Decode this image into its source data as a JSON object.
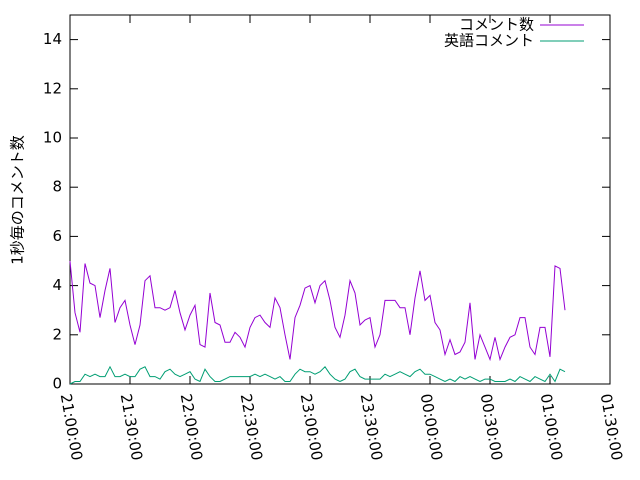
{
  "chart_data": {
    "type": "line",
    "ylabel": "1秒毎のコメント数",
    "x": [
      "21:00:00",
      "21:02:30",
      "21:05:00",
      "21:07:30",
      "21:10:00",
      "21:12:30",
      "21:15:00",
      "21:17:30",
      "21:20:00",
      "21:22:30",
      "21:25:00",
      "21:27:30",
      "21:30:00",
      "21:32:30",
      "21:35:00",
      "21:37:30",
      "21:40:00",
      "21:42:30",
      "21:45:00",
      "21:47:30",
      "21:50:00",
      "21:52:30",
      "21:55:00",
      "21:57:30",
      "22:00:00",
      "22:02:30",
      "22:05:00",
      "22:07:30",
      "22:10:00",
      "22:12:30",
      "22:15:00",
      "22:17:30",
      "22:20:00",
      "22:22:30",
      "22:25:00",
      "22:27:30",
      "22:30:00",
      "22:32:30",
      "22:35:00",
      "22:37:30",
      "22:40:00",
      "22:42:30",
      "22:45:00",
      "22:47:30",
      "22:50:00",
      "22:52:30",
      "22:55:00",
      "22:57:30",
      "23:00:00",
      "23:02:30",
      "23:05:00",
      "23:07:30",
      "23:10:00",
      "23:12:30",
      "23:15:00",
      "23:17:30",
      "23:20:00",
      "23:22:30",
      "23:25:00",
      "23:27:30",
      "23:30:00",
      "23:32:30",
      "23:35:00",
      "23:37:30",
      "23:40:00",
      "23:42:30",
      "23:45:00",
      "23:47:30",
      "23:50:00",
      "23:52:30",
      "23:55:00",
      "23:57:30",
      "00:00:00",
      "00:02:30",
      "00:05:00",
      "00:07:30",
      "00:10:00",
      "00:12:30",
      "00:15:00",
      "00:17:30",
      "00:20:00",
      "00:22:30",
      "00:25:00",
      "00:27:30",
      "00:30:00",
      "00:32:30",
      "00:35:00",
      "00:37:30",
      "00:40:00",
      "00:42:30",
      "00:45:00",
      "00:47:30",
      "00:50:00",
      "00:52:30",
      "00:55:00",
      "00:57:30",
      "01:00:00",
      "01:02:30",
      "01:05:00",
      "01:07:30"
    ],
    "series": [
      {
        "name": "コメント数",
        "color": "#9400d3",
        "values": [
          5.0,
          2.9,
          2.1,
          4.9,
          4.1,
          4.0,
          2.7,
          3.8,
          4.7,
          2.5,
          3.1,
          3.4,
          2.4,
          1.6,
          2.4,
          4.2,
          4.4,
          3.1,
          3.1,
          3.0,
          3.1,
          3.8,
          2.9,
          2.2,
          2.8,
          3.2,
          1.6,
          1.5,
          3.7,
          2.5,
          2.4,
          1.7,
          1.7,
          2.1,
          1.9,
          1.5,
          2.3,
          2.7,
          2.8,
          2.5,
          2.3,
          3.5,
          3.1,
          2.0,
          1.0,
          2.7,
          3.2,
          3.9,
          4.0,
          3.3,
          4.0,
          4.2,
          3.4,
          2.3,
          1.9,
          2.8,
          4.2,
          3.7,
          2.4,
          2.6,
          2.7,
          1.5,
          2.0,
          3.4,
          3.4,
          3.4,
          3.1,
          3.1,
          2.0,
          3.5,
          4.6,
          3.4,
          3.6,
          2.5,
          2.2,
          1.2,
          1.8,
          1.2,
          1.3,
          1.7,
          3.3,
          1.0,
          2.0,
          1.5,
          1.0,
          1.9,
          1.0,
          1.5,
          1.9,
          2.0,
          2.7,
          2.7,
          1.5,
          1.2,
          2.3,
          2.3,
          1.1,
          4.8,
          4.7,
          3.0
        ]
      },
      {
        "name": "英語コメント",
        "color": "#009e73",
        "values": [
          0.0,
          0.1,
          0.1,
          0.4,
          0.3,
          0.4,
          0.3,
          0.3,
          0.7,
          0.3,
          0.3,
          0.4,
          0.3,
          0.3,
          0.6,
          0.7,
          0.3,
          0.3,
          0.2,
          0.5,
          0.6,
          0.4,
          0.3,
          0.4,
          0.5,
          0.2,
          0.1,
          0.6,
          0.3,
          0.1,
          0.1,
          0.2,
          0.3,
          0.3,
          0.3,
          0.3,
          0.3,
          0.4,
          0.3,
          0.4,
          0.3,
          0.2,
          0.3,
          0.1,
          0.1,
          0.4,
          0.6,
          0.5,
          0.5,
          0.4,
          0.5,
          0.7,
          0.4,
          0.2,
          0.1,
          0.2,
          0.5,
          0.6,
          0.3,
          0.2,
          0.2,
          0.2,
          0.2,
          0.4,
          0.3,
          0.4,
          0.5,
          0.4,
          0.3,
          0.5,
          0.6,
          0.4,
          0.4,
          0.3,
          0.2,
          0.1,
          0.2,
          0.1,
          0.3,
          0.2,
          0.3,
          0.2,
          0.1,
          0.2,
          0.2,
          0.1,
          0.1,
          0.1,
          0.2,
          0.1,
          0.3,
          0.2,
          0.1,
          0.3,
          0.2,
          0.1,
          0.4,
          0.1,
          0.6,
          0.5
        ]
      }
    ],
    "xlim": [
      "21:00:00",
      "01:30:00"
    ],
    "xticks": [
      "21:00:00",
      "21:30:00",
      "22:00:00",
      "22:30:00",
      "23:00:00",
      "23:30:00",
      "00:00:00",
      "00:30:00",
      "01:00:00",
      "01:30:00"
    ],
    "ylim": [
      0,
      15
    ],
    "yticks": [
      0,
      2,
      4,
      6,
      8,
      10,
      12,
      14
    ],
    "legend": "upper right"
  }
}
